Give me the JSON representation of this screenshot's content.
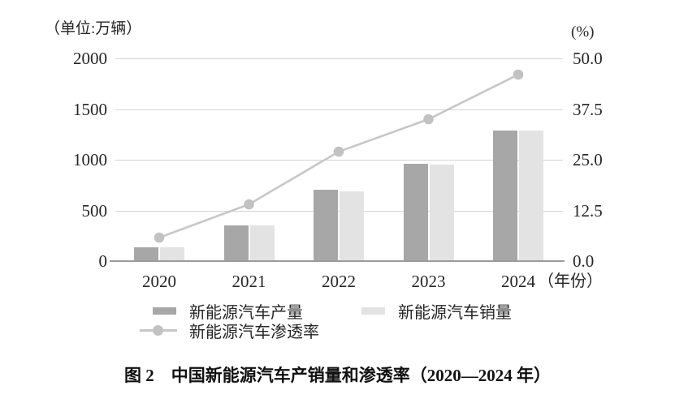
{
  "chart_data": {
    "type": "bar",
    "title": "图 2　中国新能源汽车产销量和渗透率（2020—2024 年）",
    "categories": [
      "2020",
      "2021",
      "2022",
      "2023",
      "2024"
    ],
    "series": [
      {
        "key": "production",
        "name": "新能源汽车产量",
        "type": "bar",
        "axis": "left",
        "color": "#a7a7a7",
        "values": [
          136.6,
          354.5,
          705.8,
          958.7,
          1288.8
        ]
      },
      {
        "key": "sales",
        "name": "新能源汽车销量",
        "type": "bar",
        "axis": "left",
        "color": "#e3e3e3",
        "values": [
          136.7,
          352.1,
          688.7,
          949.5,
          1286.6
        ]
      },
      {
        "key": "penetration",
        "name": "新能源汽车渗透率",
        "type": "line",
        "axis": "right",
        "color": "#c7c7c7",
        "marker_color": "#c2c2c2",
        "values": [
          5.8,
          14,
          27,
          35,
          46
        ]
      }
    ],
    "left_axis": {
      "title": "（单位:万辆）",
      "min": 0,
      "max": 2000,
      "ticks": [
        "2000",
        "1500",
        "1000",
        "500",
        "0"
      ]
    },
    "right_axis": {
      "title": "(%)",
      "min": 0,
      "max": 50,
      "ticks": [
        "50.0",
        "37.5",
        "25.0",
        "12.5",
        "0.0"
      ]
    },
    "x_axis": {
      "suffix": "（年份）"
    },
    "grid": true,
    "legend_position": "bottom"
  },
  "colors": {
    "grid": "#d4d4d4",
    "axis": "#9b9b9b",
    "text": "#262626"
  }
}
